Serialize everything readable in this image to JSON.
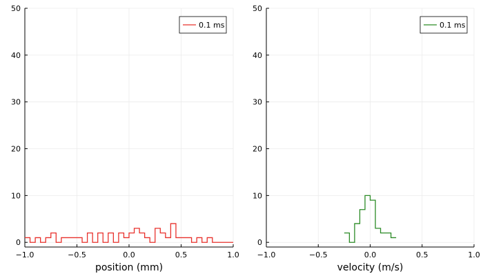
{
  "chart_data": [
    {
      "type": "line",
      "subtype": "step-histogram",
      "title": "",
      "xlabel": "position (mm)",
      "ylabel": "",
      "xlim": [
        -1.0,
        1.0
      ],
      "ylim": [
        -1,
        50
      ],
      "xticks": [
        -1.0,
        -0.5,
        0.0,
        0.5,
        1.0
      ],
      "xtick_labels": [
        "−1.0",
        "−0.5",
        "0.0",
        "0.5",
        "1.0"
      ],
      "yticks": [
        0,
        10,
        20,
        30,
        40,
        50
      ],
      "ytick_labels": [
        "0",
        "10",
        "20",
        "30",
        "40",
        "50"
      ],
      "grid": true,
      "legend_position": "top-right",
      "series": [
        {
          "name": "0.1 ms",
          "color": "#e8302b",
          "bin_edges": [
            -1.0,
            -0.95,
            -0.9,
            -0.85,
            -0.8,
            -0.75,
            -0.7,
            -0.65,
            -0.6,
            -0.55,
            -0.5,
            -0.45,
            -0.4,
            -0.35,
            -0.3,
            -0.25,
            -0.2,
            -0.15,
            -0.1,
            -0.05,
            0.0,
            0.05,
            0.1,
            0.15,
            0.2,
            0.25,
            0.3,
            0.35,
            0.4,
            0.45,
            0.5,
            0.55,
            0.6,
            0.65,
            0.7,
            0.75,
            0.8,
            0.85,
            0.9,
            0.95,
            1.0
          ],
          "counts": [
            1,
            0,
            1,
            0,
            1,
            2,
            0,
            1,
            1,
            1,
            1,
            0,
            2,
            0,
            2,
            0,
            2,
            0,
            2,
            1,
            2,
            3,
            2,
            1,
            0,
            3,
            2,
            1,
            4,
            1,
            1,
            1,
            0,
            1,
            0,
            1,
            0,
            0,
            0,
            0
          ]
        }
      ]
    },
    {
      "type": "line",
      "subtype": "step-histogram",
      "title": "",
      "xlabel": "velocity (m/s)",
      "ylabel": "",
      "xlim": [
        -1.0,
        1.0
      ],
      "ylim": [
        -1,
        50
      ],
      "xticks": [
        -1.0,
        -0.5,
        0.0,
        0.5,
        1.0
      ],
      "xtick_labels": [
        "−1.0",
        "−0.5",
        "0.0",
        "0.5",
        "1.0"
      ],
      "yticks": [
        0,
        10,
        20,
        30,
        40,
        50
      ],
      "ytick_labels": [
        "0",
        "10",
        "20",
        "30",
        "40",
        "50"
      ],
      "grid": true,
      "legend_position": "top-right",
      "series": [
        {
          "name": "0.1 ms",
          "color": "#2a8a25",
          "bin_edges": [
            -0.25,
            -0.2,
            -0.15,
            -0.1,
            -0.05,
            0.0,
            0.05,
            0.1,
            0.15,
            0.2,
            0.25
          ],
          "counts": [
            2,
            0,
            4,
            7,
            10,
            9,
            3,
            2,
            2,
            1
          ]
        }
      ]
    }
  ]
}
